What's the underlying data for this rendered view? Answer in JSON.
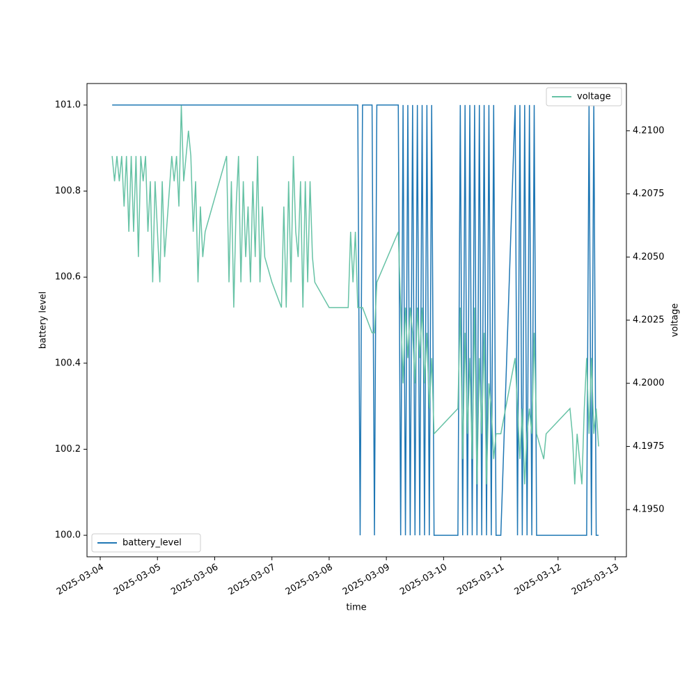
{
  "chart_data": {
    "type": "line",
    "xlabel": "time",
    "ylabel": "battery level",
    "y2label": "voltage",
    "x": [
      "2025-03-04T05:00",
      "2025-03-04T06:00",
      "2025-03-04T07:00",
      "2025-03-04T08:00",
      "2025-03-04T09:00",
      "2025-03-04T10:00",
      "2025-03-04T11:00",
      "2025-03-04T12:00",
      "2025-03-04T13:00",
      "2025-03-04T14:00",
      "2025-03-04T15:00",
      "2025-03-04T16:00",
      "2025-03-04T17:00",
      "2025-03-04T18:00",
      "2025-03-04T19:00",
      "2025-03-04T20:00",
      "2025-03-04T21:00",
      "2025-03-04T22:00",
      "2025-03-04T23:00",
      "2025-03-05T00:00",
      "2025-03-05T01:00",
      "2025-03-05T02:00",
      "2025-03-05T03:00",
      "2025-03-05T06:00",
      "2025-03-05T07:00",
      "2025-03-05T08:00",
      "2025-03-05T09:00",
      "2025-03-05T10:00",
      "2025-03-05T11:00",
      "2025-03-05T12:00",
      "2025-03-05T13:00",
      "2025-03-05T14:00",
      "2025-03-05T15:00",
      "2025-03-05T16:00",
      "2025-03-05T17:00",
      "2025-03-05T18:00",
      "2025-03-05T19:00",
      "2025-03-05T20:00",
      "2025-03-06T05:00",
      "2025-03-06T06:00",
      "2025-03-06T07:00",
      "2025-03-06T08:00",
      "2025-03-06T09:00",
      "2025-03-06T10:00",
      "2025-03-06T11:00",
      "2025-03-06T12:00",
      "2025-03-06T13:00",
      "2025-03-06T14:00",
      "2025-03-06T15:00",
      "2025-03-06T16:00",
      "2025-03-06T17:00",
      "2025-03-06T18:00",
      "2025-03-06T19:00",
      "2025-03-06T20:00",
      "2025-03-06T21:00",
      "2025-03-07T00:00",
      "2025-03-07T04:00",
      "2025-03-07T05:00",
      "2025-03-07T06:00",
      "2025-03-07T07:00",
      "2025-03-07T08:00",
      "2025-03-07T09:00",
      "2025-03-07T10:00",
      "2025-03-07T11:00",
      "2025-03-07T12:00",
      "2025-03-07T13:00",
      "2025-03-07T14:00",
      "2025-03-07T15:00",
      "2025-03-07T16:00",
      "2025-03-07T17:00",
      "2025-03-07T18:00",
      "2025-03-08T00:00",
      "2025-03-08T02:00",
      "2025-03-08T08:00",
      "2025-03-08T09:00",
      "2025-03-08T10:00",
      "2025-03-08T11:00",
      "2025-03-08T12:00",
      "2025-03-08T13:00",
      "2025-03-08T14:00",
      "2025-03-08T18:00",
      "2025-03-08T19:00",
      "2025-03-08T20:00",
      "2025-03-09T05:00",
      "2025-03-09T06:00",
      "2025-03-09T07:00",
      "2025-03-09T08:00",
      "2025-03-09T09:00",
      "2025-03-09T10:00",
      "2025-03-09T11:00",
      "2025-03-09T12:00",
      "2025-03-09T13:00",
      "2025-03-09T14:00",
      "2025-03-09T15:00",
      "2025-03-09T16:00",
      "2025-03-09T17:00",
      "2025-03-09T18:00",
      "2025-03-09T19:00",
      "2025-03-09T20:00",
      "2025-03-10T06:00",
      "2025-03-10T07:00",
      "2025-03-10T08:00",
      "2025-03-10T09:00",
      "2025-03-10T10:00",
      "2025-03-10T11:00",
      "2025-03-10T12:00",
      "2025-03-10T13:00",
      "2025-03-10T14:00",
      "2025-03-10T15:00",
      "2025-03-10T16:00",
      "2025-03-10T17:00",
      "2025-03-10T18:00",
      "2025-03-10T19:00",
      "2025-03-10T20:00",
      "2025-03-10T21:00",
      "2025-03-10T22:00",
      "2025-03-11T00:00",
      "2025-03-11T06:00",
      "2025-03-11T07:00",
      "2025-03-11T08:00",
      "2025-03-11T09:00",
      "2025-03-11T10:00",
      "2025-03-11T11:00",
      "2025-03-11T12:00",
      "2025-03-11T13:00",
      "2025-03-11T14:00",
      "2025-03-11T15:00",
      "2025-03-11T18:00",
      "2025-03-11T19:00",
      "2025-03-12T05:00",
      "2025-03-12T06:00",
      "2025-03-12T07:00",
      "2025-03-12T08:00",
      "2025-03-12T09:00",
      "2025-03-12T10:00",
      "2025-03-12T11:00",
      "2025-03-12T12:00",
      "2025-03-12T13:00",
      "2025-03-12T14:00",
      "2025-03-12T15:00",
      "2025-03-12T16:00",
      "2025-03-12T17:00"
    ],
    "series": [
      {
        "name": "battery_level",
        "color": "#1f77b4",
        "legend": "lower left",
        "values": [
          101,
          101,
          101,
          101,
          101,
          101,
          101,
          101,
          101,
          101,
          101,
          101,
          101,
          101,
          101,
          101,
          101,
          101,
          101,
          101,
          101,
          101,
          101,
          101,
          101,
          101,
          101,
          101,
          101,
          101,
          101,
          101,
          101,
          101,
          101,
          101,
          101,
          101,
          101,
          101,
          101,
          101,
          101,
          101,
          101,
          101,
          101,
          101,
          101,
          101,
          101,
          101,
          101,
          101,
          101,
          101,
          101,
          101,
          101,
          101,
          101,
          101,
          101,
          101,
          101,
          101,
          101,
          101,
          101,
          101,
          101,
          101,
          101,
          101,
          101,
          101,
          101,
          101,
          100,
          101,
          101,
          100,
          101,
          101,
          100,
          101,
          100,
          101,
          100,
          101,
          100,
          101,
          100,
          101,
          100,
          101,
          100,
          101,
          100,
          100,
          101,
          100,
          101,
          100,
          101,
          100,
          101,
          100,
          101,
          100,
          101,
          100,
          101,
          100,
          101,
          100,
          100,
          101,
          100,
          101,
          100,
          101,
          100,
          101,
          100,
          101,
          100,
          100,
          100,
          100,
          100,
          100,
          100,
          100,
          100,
          100,
          100,
          101,
          100,
          101,
          100,
          100
        ]
      },
      {
        "name": "voltage",
        "color": "#66c2a5",
        "axis": "y2",
        "legend": "upper right",
        "values": [
          4.209,
          4.208,
          4.209,
          4.208,
          4.209,
          4.207,
          4.209,
          4.206,
          4.209,
          4.206,
          4.209,
          4.205,
          4.209,
          4.208,
          4.209,
          4.206,
          4.208,
          4.204,
          4.208,
          4.206,
          4.204,
          4.208,
          4.205,
          4.209,
          4.208,
          4.209,
          4.207,
          4.211,
          4.208,
          4.209,
          4.21,
          4.209,
          4.206,
          4.208,
          4.204,
          4.207,
          4.205,
          4.206,
          4.209,
          4.204,
          4.208,
          4.203,
          4.207,
          4.209,
          4.204,
          4.208,
          4.205,
          4.207,
          4.204,
          4.208,
          4.205,
          4.209,
          4.204,
          4.207,
          4.205,
          4.204,
          4.203,
          4.207,
          4.203,
          4.208,
          4.204,
          4.209,
          4.206,
          4.205,
          4.208,
          4.203,
          4.208,
          4.204,
          4.208,
          4.205,
          4.204,
          4.203,
          4.203,
          4.203,
          4.206,
          4.204,
          4.206,
          4.203,
          4.203,
          4.203,
          4.202,
          4.202,
          4.204,
          4.206,
          4.203,
          4.2,
          4.203,
          4.201,
          4.203,
          4.202,
          4.2,
          4.203,
          4.201,
          4.203,
          4.2,
          4.202,
          4.199,
          4.201,
          4.198,
          4.199,
          4.203,
          4.197,
          4.202,
          4.198,
          4.201,
          4.197,
          4.203,
          4.196,
          4.201,
          4.198,
          4.202,
          4.196,
          4.2,
          4.199,
          4.197,
          4.198,
          4.198,
          4.201,
          4.199,
          4.197,
          4.199,
          4.196,
          4.198,
          4.199,
          4.198,
          4.202,
          4.198,
          4.197,
          4.198,
          4.199,
          4.198,
          4.196,
          4.198,
          4.197,
          4.196,
          4.199,
          4.201,
          4.198,
          4.201,
          4.198,
          4.199,
          4.1975
        ]
      }
    ],
    "xlim": [
      "2025-03-03T18:27",
      "2025-03-13T04:40"
    ],
    "xticks": [
      "2025-03-04",
      "2025-03-05",
      "2025-03-06",
      "2025-03-07",
      "2025-03-08",
      "2025-03-09",
      "2025-03-10",
      "2025-03-11",
      "2025-03-12",
      "2025-03-13"
    ],
    "ylim": [
      99.95,
      101.05
    ],
    "yticks": [
      {
        "value": 100,
        "label": "100.0"
      },
      100.2,
      100.4,
      100.6,
      100.8,
      {
        "value": 101,
        "label": "101.0"
      }
    ],
    "y2lim": [
      4.19313,
      4.21187
    ],
    "y2ticks": [
      {
        "value": 4.195,
        "label": "4.1950"
      },
      {
        "value": 4.1975,
        "label": "4.1975"
      },
      {
        "value": 4.2,
        "label": "4.2000"
      },
      {
        "value": 4.2025,
        "label": "4.2025"
      },
      {
        "value": 4.205,
        "label": "4.2050"
      },
      {
        "value": 4.2075,
        "label": "4.2075"
      },
      {
        "value": 4.21,
        "label": "4.2100"
      }
    ]
  }
}
